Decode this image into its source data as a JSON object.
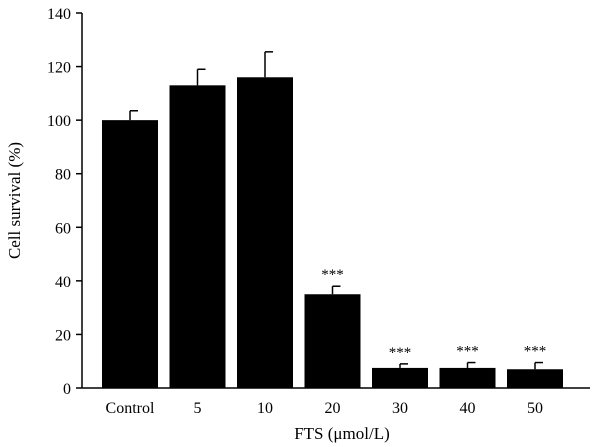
{
  "chart_data": {
    "type": "bar",
    "categories": [
      "Control",
      "5",
      "10",
      "20",
      "30",
      "40",
      "50"
    ],
    "values": [
      100,
      113,
      116,
      35,
      7.5,
      7.5,
      7
    ],
    "errors": [
      3.5,
      6,
      9.5,
      3,
      1.5,
      2,
      2.5
    ],
    "annotations": [
      "",
      "",
      "",
      "***",
      "***",
      "***",
      "***"
    ],
    "ylim": [
      0,
      140
    ],
    "yticks": [
      0,
      20,
      40,
      60,
      80,
      100,
      120,
      140
    ],
    "xlabel": "FTS (μmol/L)",
    "ylabel": "Cell survival (%)",
    "bar_color": "#000000"
  }
}
